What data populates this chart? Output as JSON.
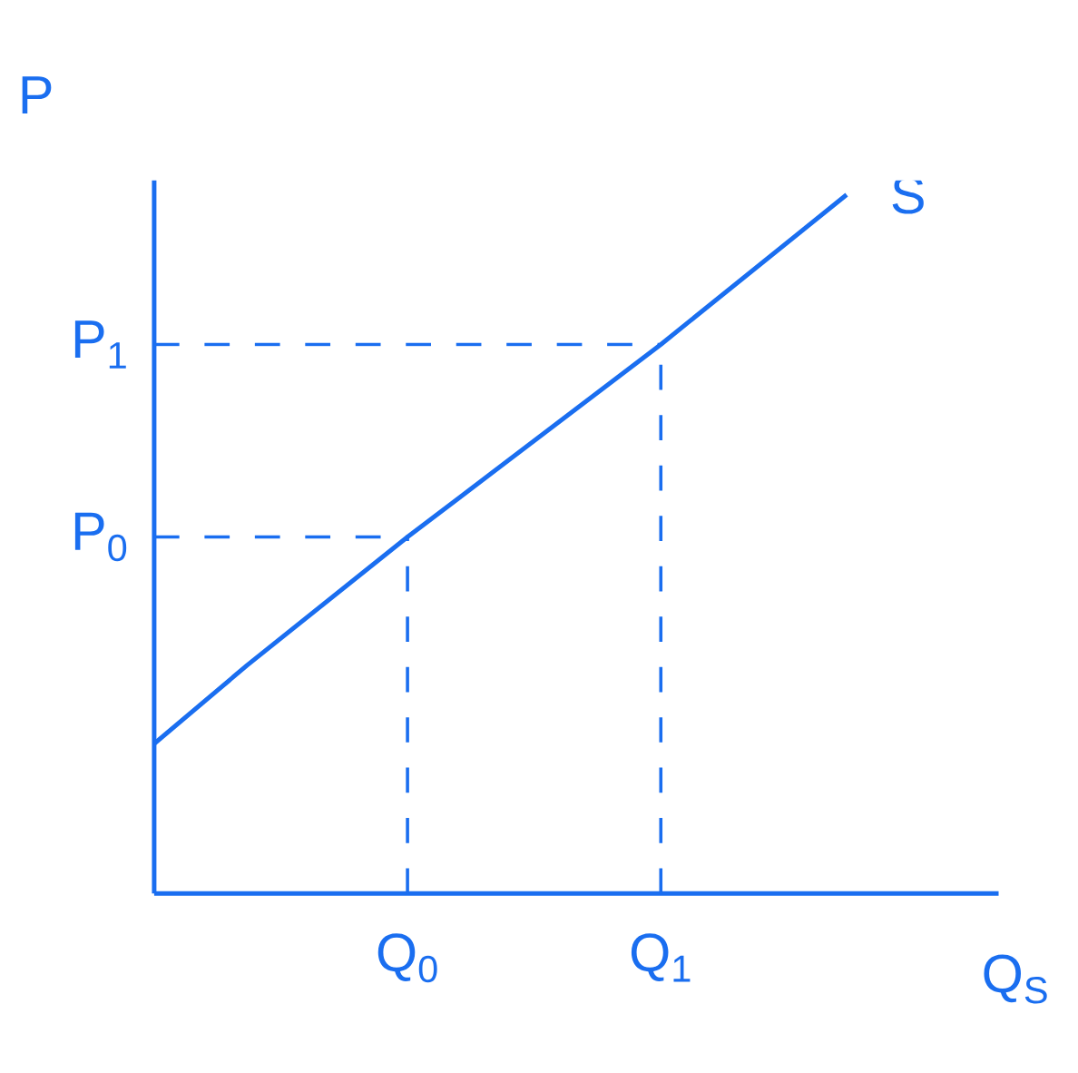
{
  "chart_data": {
    "type": "line",
    "xlabel": "Q$_{S}$",
    "ylabel": "P",
    "xlim": [
      0,
      1
    ],
    "ylim": [
      0,
      1
    ],
    "xticks": [
      {
        "value": 0.3,
        "label": "Q$_{0}$"
      },
      {
        "value": 0.6,
        "label": "Q$_{1}$"
      }
    ],
    "yticks": [
      {
        "value": 0.5,
        "label": "P$_{0}$"
      },
      {
        "value": 0.77,
        "label": "P$_{1}$"
      }
    ],
    "series": [
      {
        "name": "S",
        "color": "#1a6ef0",
        "x": [
          0,
          0.11,
          0.3,
          0.6,
          0.82
        ],
        "values": [
          0.21,
          0.32,
          0.5,
          0.77,
          0.98
        ]
      },
      {
        "color": "#1a6ef0",
        "line_style": "dashed",
        "x": [
          0,
          0.3
        ],
        "values": [
          0.5,
          0.5
        ]
      },
      {
        "color": "#1a6ef0",
        "line_style": "dashed",
        "x": [
          0.3,
          0.3
        ],
        "values": [
          0,
          0.5
        ]
      },
      {
        "color": "#1a6ef0",
        "line_style": "dashed",
        "x": [
          0,
          0.6
        ],
        "values": [
          0.77,
          0.77
        ]
      },
      {
        "color": "#1a6ef0",
        "line_style": "dashed",
        "x": [
          0.6,
          0.6
        ],
        "values": [
          0,
          0.77
        ]
      }
    ]
  }
}
